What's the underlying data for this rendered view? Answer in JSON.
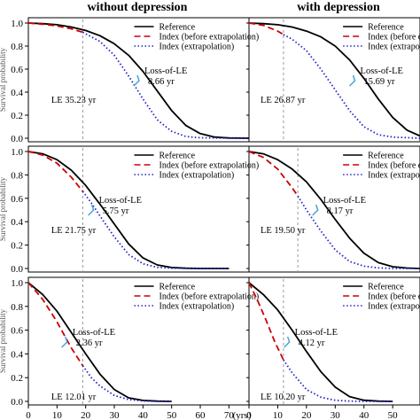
{
  "column_titles": [
    "without depression",
    "with depression"
  ],
  "y_axis_label": "Survival probability",
  "legend": {
    "reference": "Reference",
    "before": "Index (before extrapolation)",
    "after": "Index (extrapolation)"
  },
  "loss_label": "Loss-of-LE",
  "x_unit_label": "(yrs)",
  "y_ticks": [
    "0.0",
    "0.2",
    "0.4",
    "0.6",
    "0.8",
    "1.0"
  ],
  "x_ticks": [
    "0",
    "10",
    "20",
    "30",
    "40",
    "50",
    "60",
    "70"
  ],
  "colors": {
    "reference": "#000000",
    "before": "#cc0000",
    "after": "#2222cc",
    "vline": "#999999",
    "callout": "#4aa3d6"
  },
  "chart_data": {
    "type": "line",
    "xlim": [
      0,
      77
    ],
    "ylim": [
      0,
      1.0
    ],
    "x_ticks": [
      0,
      10,
      20,
      30,
      40,
      50,
      60,
      70
    ],
    "y_ticks": [
      0.0,
      0.2,
      0.4,
      0.6,
      0.8,
      1.0
    ],
    "legend_position": "top-right",
    "panels": [
      {
        "row": 1,
        "col": 1,
        "title": "without depression",
        "le_label": "LE 35.23 yr",
        "le_value": 35.23,
        "loss_value_label": "8.66 yr",
        "loss_value": 8.66,
        "series": [
          {
            "name": "Reference",
            "x": [
              0,
              5,
              10,
              15,
              20,
              25,
              30,
              35,
              40,
              45,
              50,
              55,
              60,
              65,
              70,
              77
            ],
            "y": [
              1.0,
              0.995,
              0.985,
              0.965,
              0.935,
              0.89,
              0.82,
              0.72,
              0.58,
              0.41,
              0.24,
              0.11,
              0.04,
              0.01,
              0.002,
              0.0
            ]
          },
          {
            "name": "Index (before extrapolation)",
            "x": [
              0,
              5,
              10,
              15,
              19
            ],
            "y": [
              1.0,
              0.99,
              0.975,
              0.95,
              0.92
            ]
          },
          {
            "name": "Index (extrapolation)",
            "x": [
              19,
              25,
              30,
              35,
              40,
              45,
              50,
              55,
              60,
              70,
              77
            ],
            "y": [
              0.92,
              0.84,
              0.72,
              0.54,
              0.34,
              0.16,
              0.06,
              0.015,
              0.004,
              0.0,
              0.0
            ]
          }
        ]
      },
      {
        "row": 1,
        "col": 2,
        "title": "with depression",
        "le_label": "LE 26.87 yr",
        "le_value": 26.87,
        "loss_value_label": "15.69 yr",
        "loss_value": 15.69,
        "series": [
          {
            "name": "Reference",
            "x": [
              0,
              5,
              10,
              15,
              20,
              25,
              30,
              35,
              40,
              45,
              50,
              55,
              60
            ],
            "y": [
              1.0,
              0.995,
              0.985,
              0.965,
              0.93,
              0.88,
              0.8,
              0.68,
              0.52,
              0.34,
              0.18,
              0.07,
              0.02
            ]
          },
          {
            "name": "Index (before extrapolation)",
            "x": [
              0,
              5,
              10,
              12
            ],
            "y": [
              1.0,
              0.98,
              0.93,
              0.9
            ]
          },
          {
            "name": "Index (extrapolation)",
            "x": [
              12,
              15,
              20,
              25,
              30,
              35,
              40,
              45,
              50,
              60
            ],
            "y": [
              0.9,
              0.86,
              0.76,
              0.6,
              0.42,
              0.24,
              0.1,
              0.03,
              0.01,
              0.0
            ]
          }
        ]
      },
      {
        "row": 2,
        "col": 1,
        "le_label": "LE 21.75 yr",
        "le_value": 21.75,
        "loss_value_label": "5.75 yr",
        "loss_value": 5.75,
        "series": [
          {
            "name": "Reference",
            "x": [
              0,
              5,
              10,
              15,
              20,
              25,
              30,
              35,
              40,
              45,
              50,
              55,
              60,
              70
            ],
            "y": [
              1.0,
              0.98,
              0.93,
              0.84,
              0.71,
              0.55,
              0.38,
              0.21,
              0.09,
              0.03,
              0.008,
              0.002,
              0.0,
              0.0
            ]
          },
          {
            "name": "Index (before extrapolation)",
            "x": [
              0,
              5,
              10,
              15,
              19
            ],
            "y": [
              1.0,
              0.97,
              0.9,
              0.78,
              0.66
            ]
          },
          {
            "name": "Index (extrapolation)",
            "x": [
              19,
              22,
              25,
              30,
              35,
              40,
              45,
              50,
              60,
              70
            ],
            "y": [
              0.66,
              0.56,
              0.45,
              0.27,
              0.12,
              0.04,
              0.01,
              0.002,
              0.0,
              0.0
            ]
          }
        ]
      },
      {
        "row": 2,
        "col": 2,
        "le_label": "LE 19.50 yr",
        "le_value": 19.5,
        "loss_value_label": "8.17 yr",
        "loss_value": 8.17,
        "series": [
          {
            "name": "Reference",
            "x": [
              0,
              5,
              10,
              15,
              20,
              25,
              30,
              35,
              40,
              45,
              50,
              55,
              60
            ],
            "y": [
              1.0,
              0.98,
              0.93,
              0.85,
              0.74,
              0.59,
              0.42,
              0.26,
              0.13,
              0.05,
              0.015,
              0.004,
              0.0
            ]
          },
          {
            "name": "Index (before extrapolation)",
            "x": [
              0,
              5,
              10,
              15,
              17
            ],
            "y": [
              1.0,
              0.95,
              0.85,
              0.69,
              0.62
            ]
          },
          {
            "name": "Index (extrapolation)",
            "x": [
              17,
              20,
              25,
              30,
              35,
              40,
              45,
              50,
              60
            ],
            "y": [
              0.62,
              0.5,
              0.32,
              0.16,
              0.06,
              0.02,
              0.005,
              0.0,
              0.0
            ]
          }
        ]
      },
      {
        "row": 3,
        "col": 1,
        "le_label": "LE 12.01 yr",
        "le_value": 12.01,
        "loss_value_label": "2.36 yr",
        "loss_value": 2.36,
        "series": [
          {
            "name": "Reference",
            "x": [
              0,
              5,
              10,
              15,
              20,
              25,
              30,
              35,
              40,
              45,
              50
            ],
            "y": [
              1.0,
              0.9,
              0.76,
              0.58,
              0.4,
              0.23,
              0.1,
              0.03,
              0.008,
              0.002,
              0.0
            ]
          },
          {
            "name": "Index (before extrapolation)",
            "x": [
              0,
              5,
              10,
              15,
              19
            ],
            "y": [
              1.0,
              0.86,
              0.67,
              0.45,
              0.3
            ]
          },
          {
            "name": "Index (extrapolation)",
            "x": [
              19,
              22,
              25,
              30,
              35,
              40,
              45,
              50
            ],
            "y": [
              0.3,
              0.2,
              0.13,
              0.05,
              0.015,
              0.004,
              0.0,
              0.0
            ]
          }
        ]
      },
      {
        "row": 3,
        "col": 2,
        "le_label": "LE 10.20 yr",
        "le_value": 10.2,
        "loss_value_label": "4.12 yr",
        "loss_value": 4.12,
        "series": [
          {
            "name": "Reference",
            "x": [
              0,
              5,
              10,
              15,
              20,
              25,
              30,
              35,
              40,
              45,
              50
            ],
            "y": [
              1.0,
              0.9,
              0.77,
              0.6,
              0.42,
              0.25,
              0.12,
              0.04,
              0.01,
              0.002,
              0.0
            ]
          },
          {
            "name": "Index (before extrapolation)",
            "x": [
              0,
              3,
              6,
              9,
              12
            ],
            "y": [
              1.0,
              0.85,
              0.68,
              0.5,
              0.35
            ]
          },
          {
            "name": "Index (extrapolation)",
            "x": [
              12,
              15,
              20,
              25,
              30,
              35,
              40,
              45,
              50
            ],
            "y": [
              0.35,
              0.24,
              0.1,
              0.035,
              0.01,
              0.002,
              0.0,
              0.0,
              0.0
            ]
          }
        ]
      }
    ]
  }
}
